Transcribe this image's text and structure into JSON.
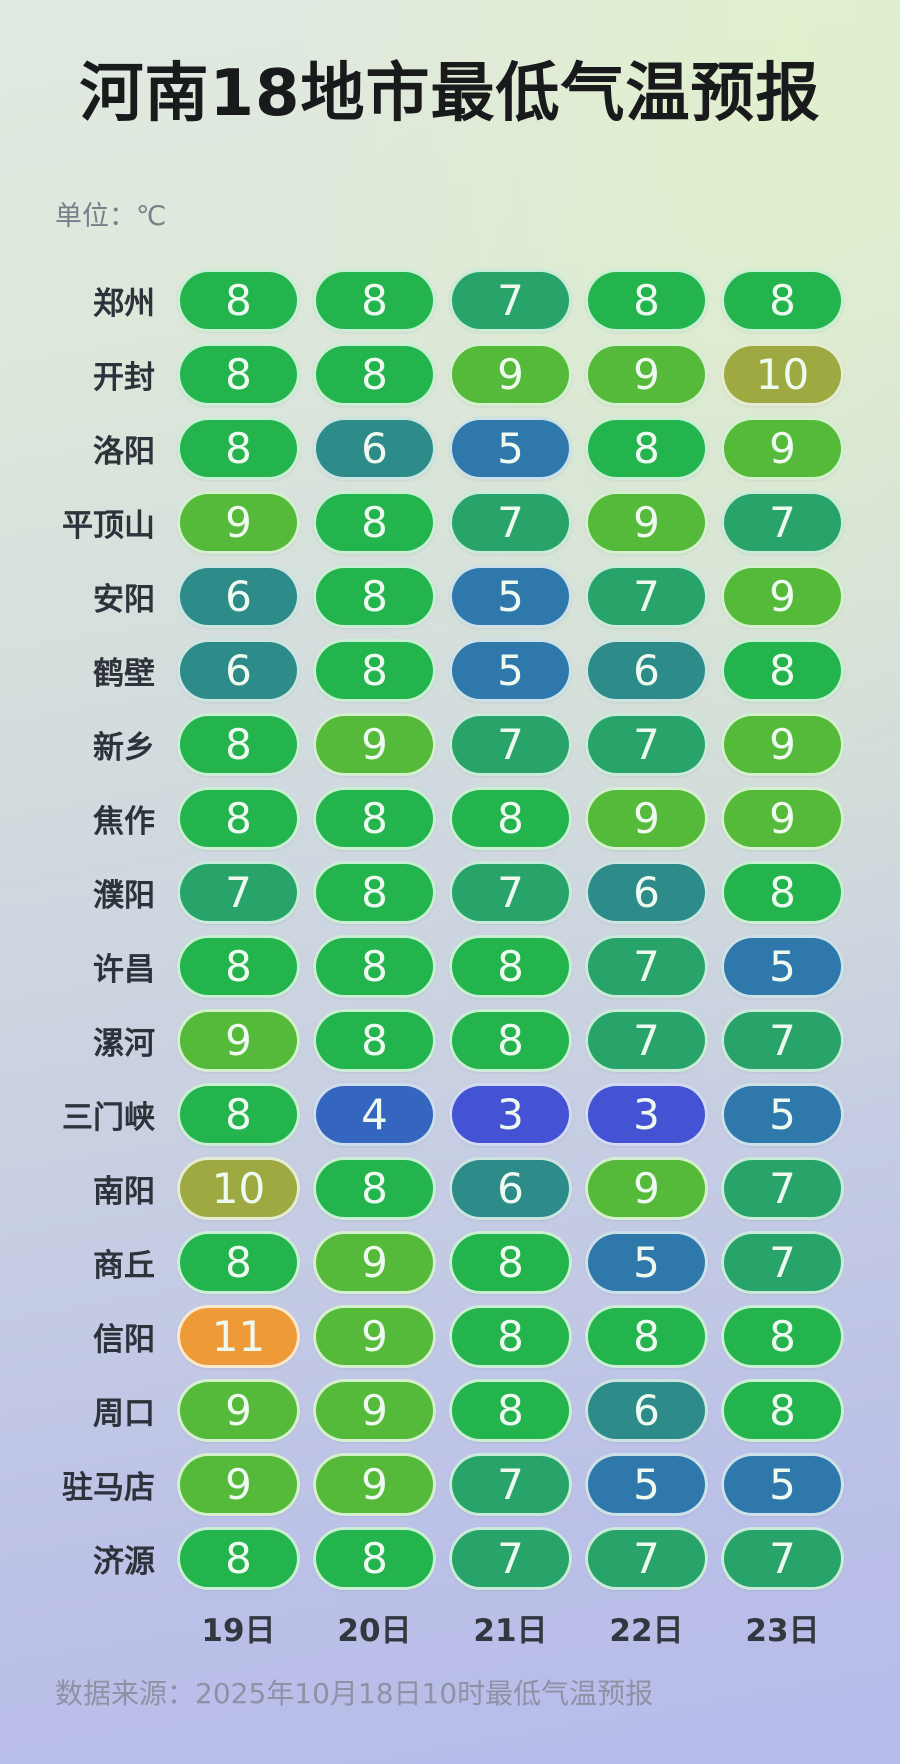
{
  "title": "河南18地市最低气温预报",
  "unit_label": "单位：℃",
  "footer": "数据来源：2025年10月18日10时最低气温预报",
  "colors": {
    "temp_scale": {
      "3": "#4452d4",
      "4": "#3566bf",
      "5": "#2f78ab",
      "6": "#2d8b89",
      "7": "#28a46b",
      "8": "#23b44e",
      "9": "#55b93a",
      "10": "#9fa941",
      "11": "#ef9a38"
    },
    "background_top": "#dde8da",
    "background_bottom": "#b7bbea",
    "pill_text": "#eefaf0",
    "title_text": "#181a1b"
  },
  "chart_data": {
    "type": "heatmap",
    "title": "河南18地市最低气温预报",
    "unit": "℃",
    "categories": [
      "19日",
      "20日",
      "21日",
      "22日",
      "23日"
    ],
    "series": [
      {
        "name": "郑州",
        "values": [
          8,
          8,
          7,
          8,
          8
        ]
      },
      {
        "name": "开封",
        "values": [
          8,
          8,
          9,
          9,
          10
        ]
      },
      {
        "name": "洛阳",
        "values": [
          8,
          6,
          5,
          8,
          9
        ]
      },
      {
        "name": "平顶山",
        "values": [
          9,
          8,
          7,
          9,
          7
        ]
      },
      {
        "name": "安阳",
        "values": [
          6,
          8,
          5,
          7,
          9
        ]
      },
      {
        "name": "鹤壁",
        "values": [
          6,
          8,
          5,
          6,
          8
        ]
      },
      {
        "name": "新乡",
        "values": [
          8,
          9,
          7,
          7,
          9
        ]
      },
      {
        "name": "焦作",
        "values": [
          8,
          8,
          8,
          9,
          9
        ]
      },
      {
        "name": "濮阳",
        "values": [
          7,
          8,
          7,
          6,
          8
        ]
      },
      {
        "name": "许昌",
        "values": [
          8,
          8,
          8,
          7,
          5
        ]
      },
      {
        "name": "漯河",
        "values": [
          9,
          8,
          8,
          7,
          7
        ]
      },
      {
        "name": "三门峡",
        "values": [
          8,
          4,
          3,
          3,
          5
        ]
      },
      {
        "name": "南阳",
        "values": [
          10,
          8,
          6,
          9,
          7
        ]
      },
      {
        "name": "商丘",
        "values": [
          8,
          9,
          8,
          5,
          7
        ]
      },
      {
        "name": "信阳",
        "values": [
          11,
          9,
          8,
          8,
          8
        ]
      },
      {
        "name": "周口",
        "values": [
          9,
          9,
          8,
          6,
          8
        ]
      },
      {
        "name": "驻马店",
        "values": [
          9,
          9,
          7,
          5,
          5
        ]
      },
      {
        "name": "济源",
        "values": [
          8,
          8,
          7,
          7,
          7
        ]
      }
    ],
    "value_range": [
      3,
      11
    ],
    "legend": "none",
    "grid": "off"
  }
}
